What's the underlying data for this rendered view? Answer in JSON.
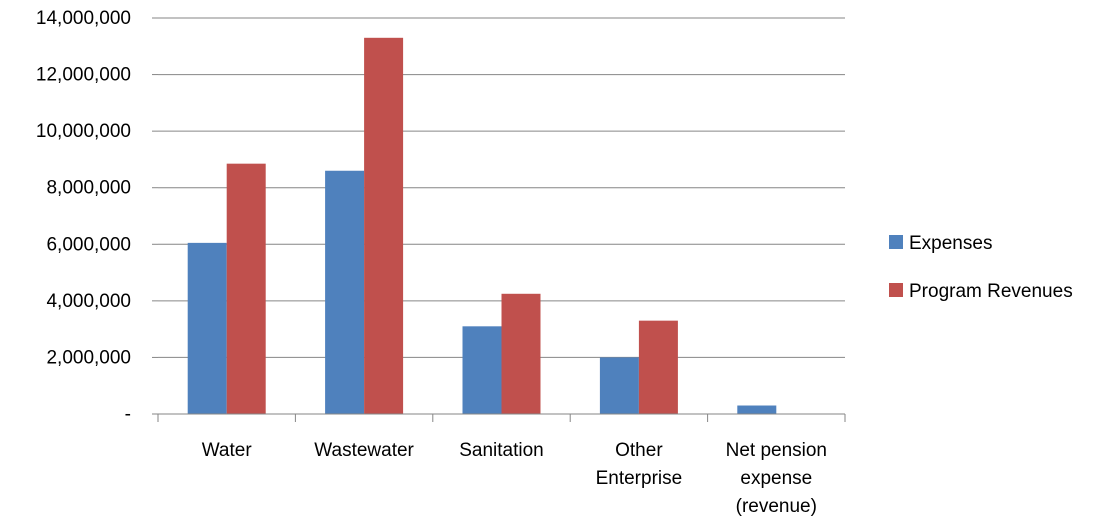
{
  "chart_data": {
    "type": "bar",
    "categories": [
      [
        "Water"
      ],
      [
        "Wastewater"
      ],
      [
        "Sanitation"
      ],
      [
        "Other",
        "Enterprise"
      ],
      [
        "Net pension",
        "expense",
        "(revenue)"
      ]
    ],
    "series": [
      {
        "name": "Expenses",
        "color": "#4F81BD",
        "values": [
          6050000,
          8600000,
          3100000,
          2000000,
          300000
        ]
      },
      {
        "name": "Program Revenues",
        "color": "#C0504D",
        "values": [
          8850000,
          13300000,
          4250000,
          3300000,
          0
        ]
      }
    ],
    "y_ticks": [
      "-",
      "2,000,000",
      "4,000,000",
      "6,000,000",
      "8,000,000",
      "10,000,000",
      "12,000,000",
      "14,000,000"
    ],
    "ylim": [
      0,
      14000000
    ],
    "grid": true,
    "legend_position": "right",
    "title": "",
    "xlabel": "",
    "ylabel": ""
  }
}
